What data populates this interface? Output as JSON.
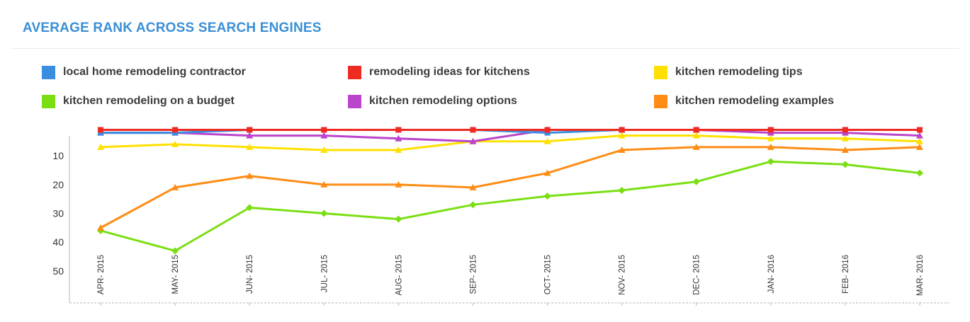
{
  "chart_data": {
    "type": "line",
    "title": "AVERAGE RANK ACROSS SEARCH ENGINES",
    "categories": [
      "APR- 2015",
      "MAY- 2015",
      "JUN- 2015",
      "JUL- 2015",
      "AUG- 2015",
      "SEP- 2015",
      "OCT- 2015",
      "NOV- 2015",
      "DEC- 2015",
      "JAN- 2016",
      "FEB- 2016",
      "MAR- 2016"
    ],
    "yticks": [
      10,
      20,
      30,
      40,
      50
    ],
    "ylim": [
      1,
      60
    ],
    "y_inverted": true,
    "grid": false,
    "legend_position": "top",
    "series": [
      {
        "name": "local home remodeling contractor",
        "color": "#3a8ee0",
        "marker": "square",
        "values": [
          2,
          2,
          1,
          1,
          1,
          1,
          2,
          1,
          1,
          1,
          1,
          1
        ]
      },
      {
        "name": "remodeling ideas for kitchens",
        "color": "#ef2a20",
        "marker": "square",
        "values": [
          1,
          1,
          1,
          1,
          1,
          1,
          1,
          1,
          1,
          1,
          1,
          1
        ]
      },
      {
        "name": "kitchen remodeling tips",
        "color": "#ffe000",
        "marker": "triangle",
        "values": [
          7,
          6,
          7,
          8,
          8,
          5,
          5,
          3,
          3,
          4,
          4,
          5
        ]
      },
      {
        "name": "kitchen remodeling on a budget",
        "color": "#7adf12",
        "marker": "diamond",
        "values": [
          36,
          43,
          28,
          30,
          32,
          27,
          24,
          22,
          19,
          12,
          13,
          16
        ]
      },
      {
        "name": "kitchen remodeling options",
        "color": "#bb44cc",
        "marker": "triangle",
        "values": [
          2,
          2,
          3,
          3,
          4,
          5,
          1,
          1,
          1,
          2,
          2,
          3
        ]
      },
      {
        "name": "kitchen remodeling examples",
        "color": "#ff8c14",
        "marker": "triangle",
        "values": [
          35,
          21,
          17,
          20,
          20,
          21,
          16,
          8,
          7,
          7,
          8,
          7
        ]
      }
    ]
  }
}
